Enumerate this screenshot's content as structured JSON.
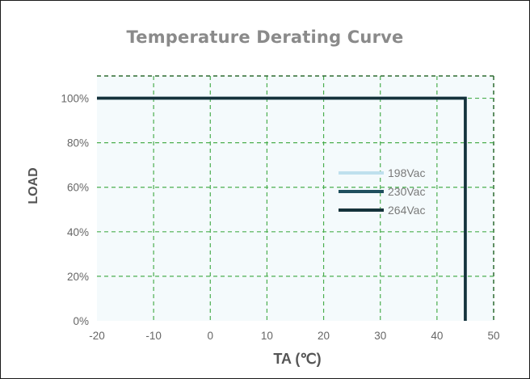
{
  "chart_data": {
    "type": "line",
    "title": "Temperature Derating Curve",
    "xlabel": "TA (℃)",
    "ylabel": "LOAD",
    "xlim": [
      -20,
      50
    ],
    "ylim": [
      0,
      110
    ],
    "x_ticks": [
      -20,
      -10,
      0,
      10,
      20,
      30,
      40,
      50
    ],
    "y_ticks": [
      0,
      20,
      40,
      60,
      80,
      100
    ],
    "y_tick_labels": [
      "0%",
      "20%",
      "40%",
      "60%",
      "80%",
      "100%"
    ],
    "grid": true,
    "legend_position": "center-right",
    "series": [
      {
        "name": "198Vac",
        "color": "#bfe0ee",
        "x": [
          -20,
          45,
          45
        ],
        "y": [
          100,
          100,
          0
        ]
      },
      {
        "name": "230Vac",
        "color": "#1f4f5e",
        "x": [
          -20,
          45,
          45
        ],
        "y": [
          100,
          100,
          0
        ]
      },
      {
        "name": "264Vac",
        "color": "#15323b",
        "x": [
          -20,
          45,
          45
        ],
        "y": [
          100,
          100,
          0
        ]
      }
    ]
  },
  "colors": {
    "plot_background": "#f4fafc",
    "grid": "#4bae4f",
    "title": "#8a8a8a"
  }
}
